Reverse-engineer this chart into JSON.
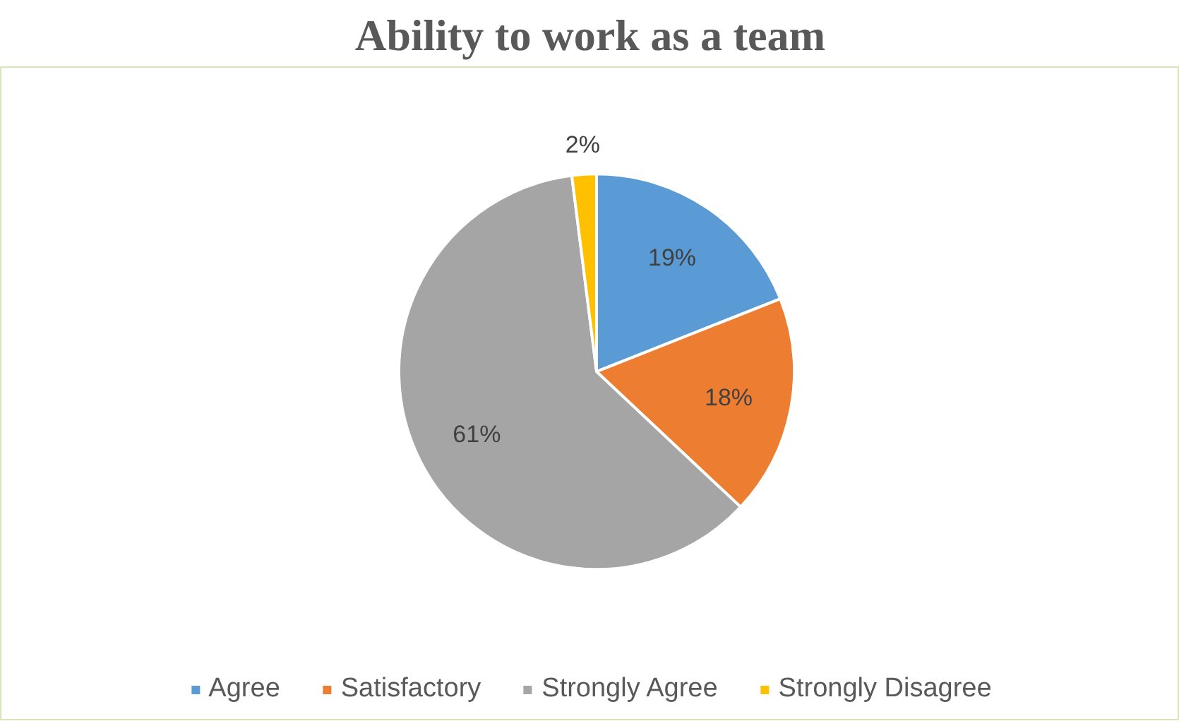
{
  "chart_data": {
    "type": "pie",
    "title": "Ability to work as a team",
    "categories": [
      "Agree",
      "Satisfactory",
      "Strongly Agree",
      "Strongly Disagree"
    ],
    "values": [
      19,
      18,
      61,
      2
    ],
    "value_labels": [
      "19%",
      "18%",
      "61%",
      "2%"
    ],
    "colors": [
      "#5b9bd5",
      "#ed7d31",
      "#a5a5a5",
      "#ffc000"
    ],
    "legend": "bottom"
  }
}
